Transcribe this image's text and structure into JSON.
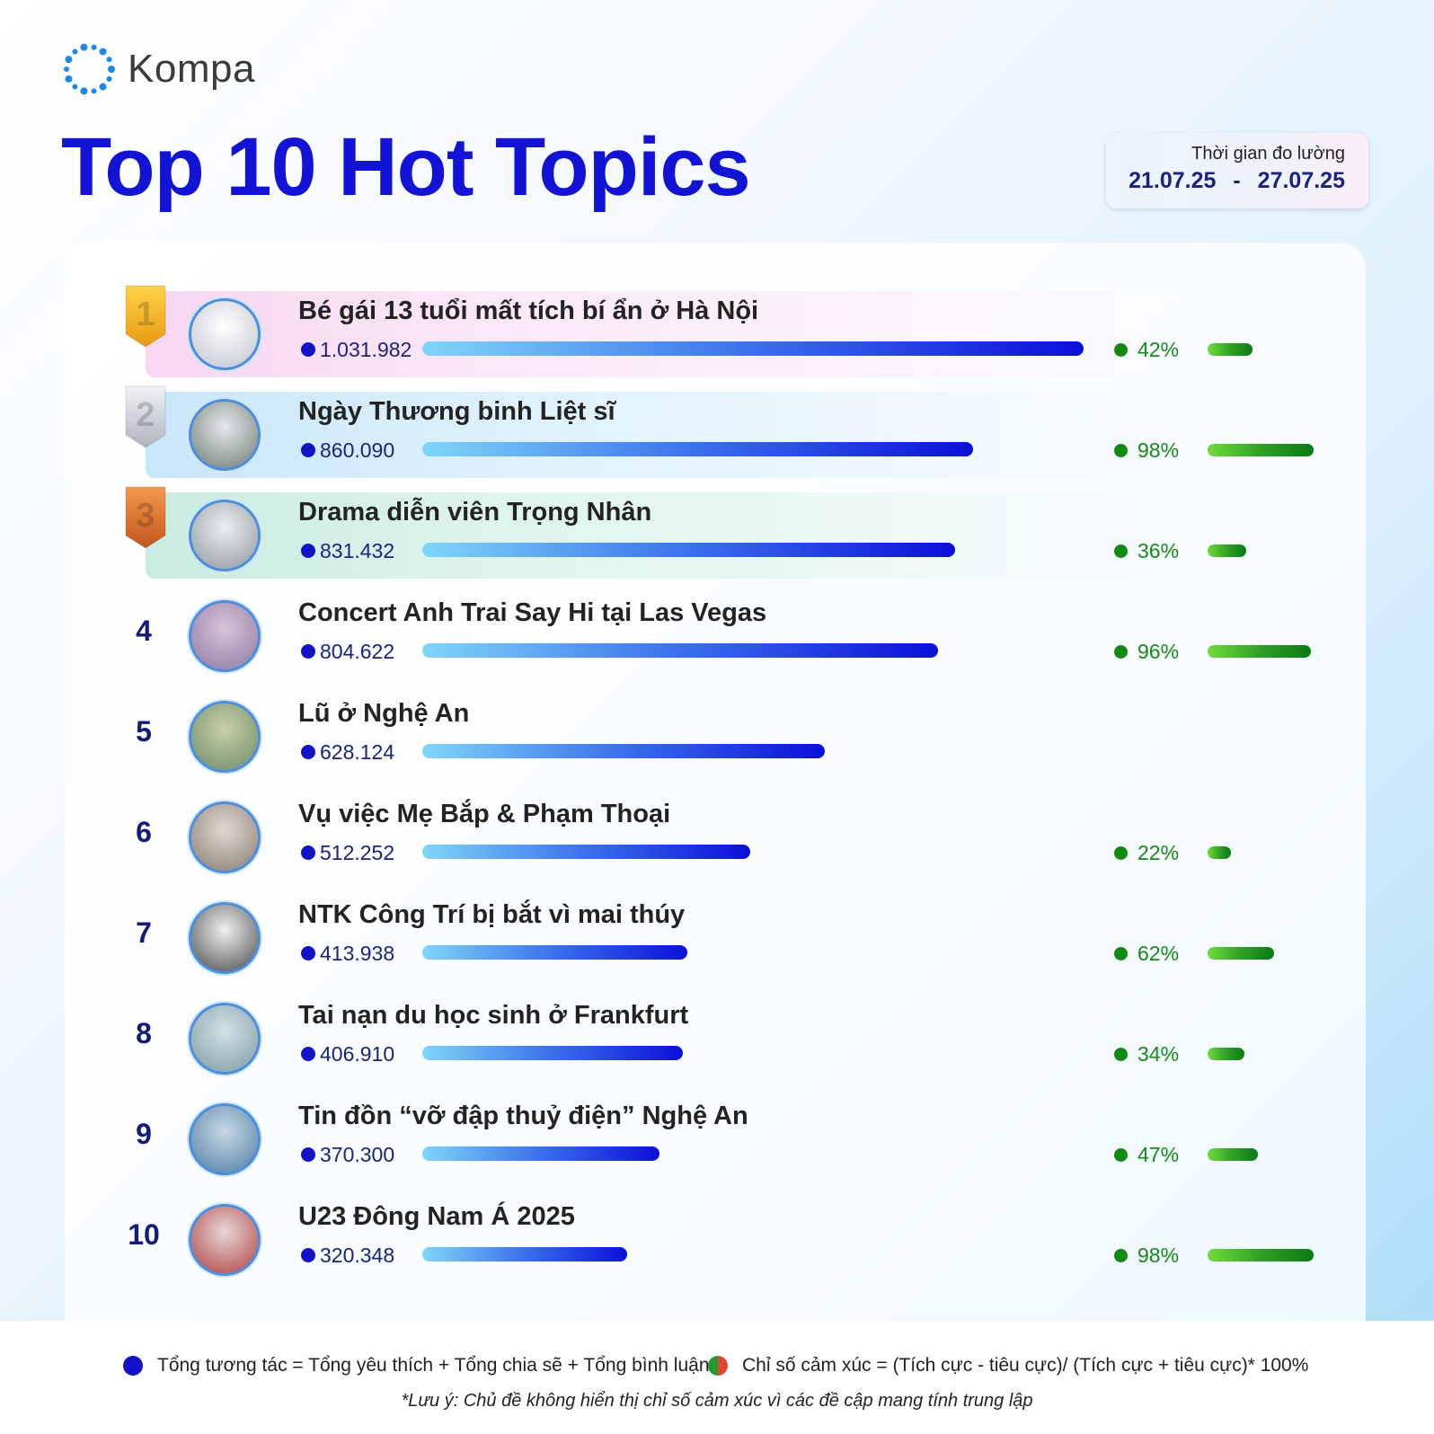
{
  "brand": {
    "name": "Kompa",
    "icon": "kompa-ring-logo-icon"
  },
  "title": "Top 10 Hot Topics",
  "measure": {
    "label": "Thời gian đo lường",
    "from": "21.07.25",
    "separator": "-",
    "to": "27.07.25"
  },
  "chart_data": {
    "type": "bar",
    "title": "Top 10 Hot Topics",
    "categories": [
      "Bé gái 13 tuổi mất tích bí ẩn ở Hà Nội",
      "Ngày Thương binh Liệt sĩ",
      "Drama diễn viên Trọng Nhân",
      "Concert Anh Trai Say Hi tại Las Vegas",
      "Lũ ở Nghệ An",
      "Vụ việc Mẹ Bắp & Phạm Thoại",
      "NTK Công Trí bị bắt vì mai thúy",
      "Tai nạn du học sinh ở Frankfurt",
      "Tin đồn “vỡ đập thuỷ điện” Nghệ An",
      "U23 Đông Nam Á 2025"
    ],
    "series": [
      {
        "values": [
          1031982,
          860090,
          831432,
          804622,
          628124,
          512252,
          413938,
          406910,
          370300,
          320348
        ],
        "labels": [
          "1.031.982",
          "860.090",
          "831.432",
          "804.622",
          "628.124",
          "512.252",
          "413.938",
          "406.910",
          "370.300",
          "320.348"
        ],
        "color": "#1212c8"
      },
      {
        "values": [
          42,
          98,
          36,
          96,
          null,
          22,
          62,
          34,
          47,
          98
        ],
        "labels": [
          "42%",
          "98%",
          "36%",
          "96%",
          "",
          "22%",
          "62%",
          "34%",
          "47%",
          "98%"
        ],
        "color": "#168a16"
      }
    ],
    "ranks": [
      "1",
      "2",
      "3",
      "4",
      "5",
      "6",
      "7",
      "8",
      "9",
      "10"
    ],
    "medals": [
      "gold",
      "silver",
      "bronze"
    ],
    "xlim": [
      0,
      1031982
    ],
    "sentiment_lim": [
      0,
      100
    ]
  },
  "legend": {
    "interaction": "Tổng tương tác = Tổng yêu thích + Tổng chia sẽ + Tổng bình luận",
    "sentiment": "Chỉ số cảm xúc = (Tích cực - tiêu cực)/ (Tích cực + tiêu cực)* 100%",
    "note": "*Lưu ý: Chủ đề không hiển thị chỉ số cảm xúc vì các đề cập mang tính trung lập"
  },
  "colors": {
    "title": "#1313d6",
    "interaction": "#1212c8",
    "sentiment_positive": "#1f9a2c",
    "sentiment_negative": "#e2452f",
    "medal_gold": "#f2b21c",
    "medal_silver": "#c9ced6",
    "medal_bronze": "#e07a2a"
  }
}
